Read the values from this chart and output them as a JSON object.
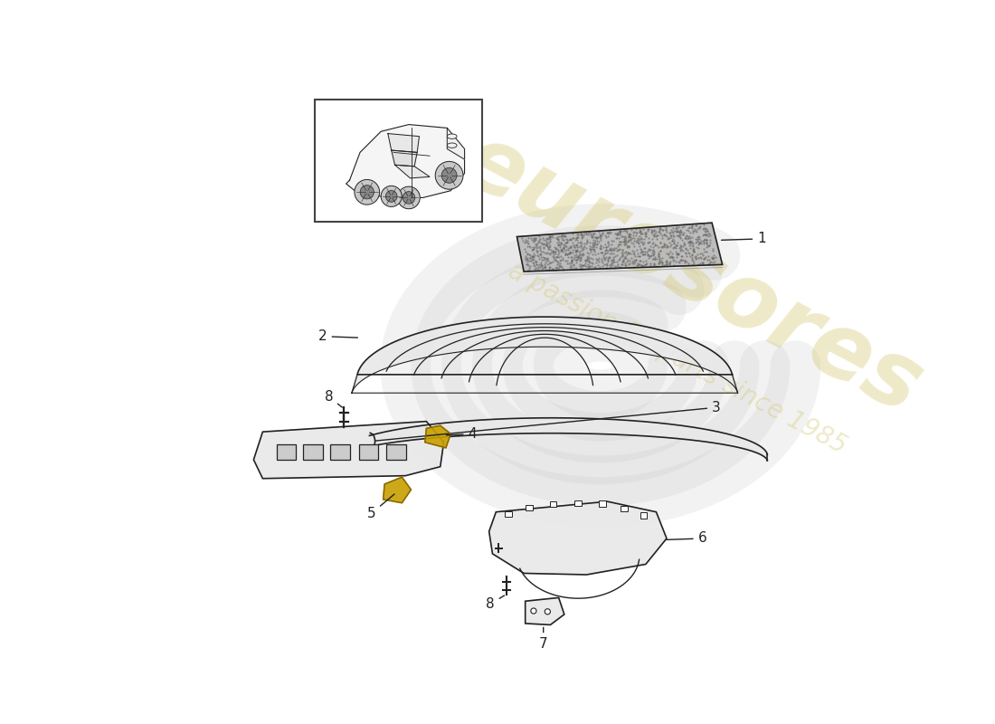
{
  "background_color": "#ffffff",
  "line_color": "#222222",
  "watermark_main": "eurosores",
  "watermark_sub": "a passion for parts since 1985",
  "watermark_color": "#d4c870",
  "watermark_alpha": 0.38,
  "swirl_color": "#cccccc",
  "swirl_alpha": 0.25,
  "gold_color": "#c8a000",
  "gold_edge": "#886600",
  "light_gray": "#e8e8e8",
  "mid_gray": "#b8b8b8",
  "panel_gray": "#d8d8d8",
  "fig_width": 11.0,
  "fig_height": 8.0,
  "dpi": 100
}
